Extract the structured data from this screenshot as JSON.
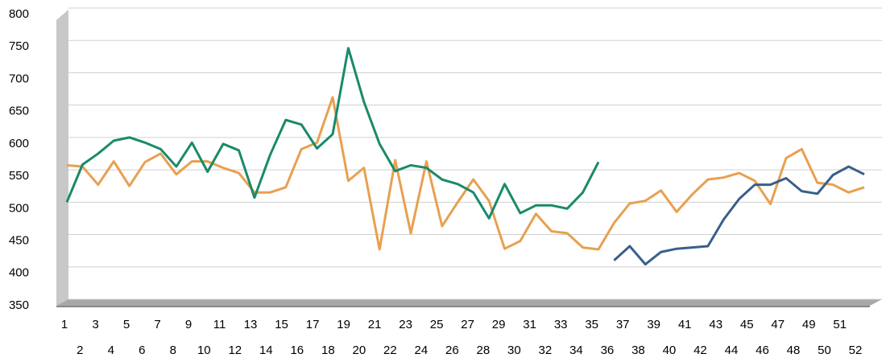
{
  "chart_data": {
    "type": "line",
    "categories": [
      "1",
      "2",
      "3",
      "4",
      "5",
      "6",
      "7",
      "8",
      "9",
      "10",
      "11",
      "12",
      "13",
      "14",
      "15",
      "16",
      "17",
      "18",
      "19",
      "20",
      "21",
      "22",
      "23",
      "24",
      "25",
      "26",
      "27",
      "28",
      "29",
      "30",
      "31",
      "32",
      "33",
      "34",
      "35",
      "36",
      "37",
      "38",
      "39",
      "40",
      "41",
      "42",
      "43",
      "44",
      "45",
      "46",
      "47",
      "48",
      "49",
      "50",
      "51",
      "52"
    ],
    "series": [
      {
        "color": "#e8a050",
        "values": [
          567,
          565,
          537,
          573,
          535,
          572,
          585,
          553,
          573,
          573,
          563,
          555,
          525,
          525,
          533,
          592,
          602,
          672,
          543,
          563,
          437,
          575,
          462,
          573,
          473,
          510,
          545,
          512,
          438,
          450,
          492,
          465,
          462,
          440,
          437,
          478,
          508,
          512,
          528,
          495,
          522,
          545,
          548,
          555,
          543,
          507,
          578,
          592,
          540,
          537,
          525,
          533
        ]
      },
      {
        "color": "#1a8a6a",
        "values": [
          510,
          568,
          585,
          605,
          610,
          602,
          592,
          565,
          602,
          557,
          600,
          590,
          517,
          583,
          637,
          630,
          593,
          615,
          748,
          665,
          600,
          558,
          567,
          563,
          545,
          538,
          525,
          485,
          538,
          493,
          505,
          505,
          500,
          525,
          572,
          null,
          null,
          null,
          null,
          null,
          null,
          null,
          null,
          null,
          null,
          null,
          null,
          null,
          null,
          null,
          null,
          null
        ]
      },
      {
        "color": "#3a5f8a",
        "values": [
          null,
          null,
          null,
          null,
          null,
          null,
          null,
          null,
          null,
          null,
          null,
          null,
          null,
          null,
          null,
          null,
          null,
          null,
          null,
          null,
          null,
          null,
          null,
          null,
          null,
          null,
          null,
          null,
          null,
          null,
          null,
          null,
          null,
          null,
          null,
          420,
          442,
          414,
          433,
          438,
          440,
          442,
          483,
          515,
          537,
          537,
          547,
          527,
          523,
          552,
          565,
          553
        ]
      }
    ],
    "ylim": [
      350,
      800
    ],
    "yticks": [
      350,
      400,
      450,
      500,
      550,
      600,
      650,
      700,
      750,
      800
    ],
    "grid": true
  }
}
